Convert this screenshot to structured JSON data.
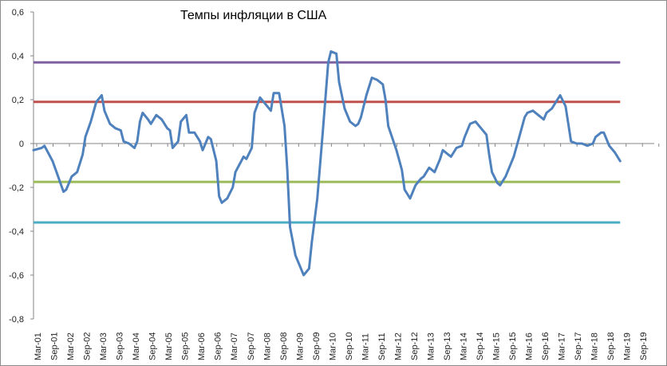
{
  "chart_data": {
    "type": "line",
    "title": "Темпы инфляции в США",
    "xlabel": "",
    "ylabel": "",
    "ylim": [
      -0.8,
      0.6
    ],
    "yticks": [
      "-0,8",
      "-0,6",
      "-0,4",
      "-0,2",
      "0",
      "0,2",
      "0,4",
      "0,6"
    ],
    "ytick_values": [
      -0.8,
      -0.6,
      -0.4,
      -0.2,
      0,
      0.2,
      0.4,
      0.6
    ],
    "xticks": [
      "Mar-01",
      "Sep-01",
      "Mar-02",
      "Sep-02",
      "Mar-03",
      "Sep-03",
      "Mar-04",
      "Sep-04",
      "Mar-05",
      "Sep-05",
      "Mar-06",
      "Sep-06",
      "Mar-07",
      "Sep-07",
      "Mar-08",
      "Sep-08",
      "Mar-09",
      "Sep-09",
      "Mar-10",
      "Sep-10",
      "Mar-11",
      "Sep-11",
      "Mar-12",
      "Sep-12",
      "Mar-13",
      "Sep-13",
      "Mar-14",
      "Sep-14",
      "Mar-15",
      "Sep-15",
      "Mar-16",
      "Sep-16",
      "Mar-17",
      "Sep-17",
      "Mar-18",
      "Sep-18",
      "Mar-19",
      "Sep-19"
    ],
    "grid": false,
    "legend": "none",
    "series": [
      {
        "color": "#4F81BD",
        "points": [
          [
            "2001-01",
            -0.03
          ],
          [
            "2001-04",
            -0.02
          ],
          [
            "2001-05",
            -0.01
          ],
          [
            "2001-08",
            -0.08
          ],
          [
            "2001-10",
            -0.15
          ],
          [
            "2001-12",
            -0.22
          ],
          [
            "2002-01",
            -0.21
          ],
          [
            "2002-03",
            -0.15
          ],
          [
            "2002-05",
            -0.13
          ],
          [
            "2002-07",
            -0.05
          ],
          [
            "2002-08",
            0.03
          ],
          [
            "2002-10",
            0.1
          ],
          [
            "2002-12",
            0.19
          ],
          [
            "2003-02",
            0.22
          ],
          [
            "2003-03",
            0.15
          ],
          [
            "2003-05",
            0.09
          ],
          [
            "2003-07",
            0.07
          ],
          [
            "2003-09",
            0.06
          ],
          [
            "2003-10",
            0.01
          ],
          [
            "2003-12",
            0.0
          ],
          [
            "2004-02",
            -0.02
          ],
          [
            "2004-03",
            0.01
          ],
          [
            "2004-04",
            0.1
          ],
          [
            "2004-05",
            0.14
          ],
          [
            "2004-07",
            0.11
          ],
          [
            "2004-08",
            0.09
          ],
          [
            "2004-10",
            0.13
          ],
          [
            "2004-12",
            0.11
          ],
          [
            "2005-02",
            0.07
          ],
          [
            "2005-03",
            0.06
          ],
          [
            "2005-04",
            -0.02
          ],
          [
            "2005-06",
            0.01
          ],
          [
            "2005-07",
            0.1
          ],
          [
            "2005-09",
            0.13
          ],
          [
            "2005-10",
            0.05
          ],
          [
            "2005-12",
            0.05
          ],
          [
            "2006-02",
            0.01
          ],
          [
            "2006-03",
            -0.03
          ],
          [
            "2006-04",
            0.0
          ],
          [
            "2006-05",
            0.03
          ],
          [
            "2006-06",
            0.02
          ],
          [
            "2006-08",
            -0.08
          ],
          [
            "2006-09",
            -0.24
          ],
          [
            "2006-10",
            -0.27
          ],
          [
            "2006-12",
            -0.25
          ],
          [
            "2007-02",
            -0.2
          ],
          [
            "2007-03",
            -0.13
          ],
          [
            "2007-06",
            -0.06
          ],
          [
            "2007-07",
            -0.07
          ],
          [
            "2007-09",
            -0.02
          ],
          [
            "2007-10",
            0.14
          ],
          [
            "2007-12",
            0.21
          ],
          [
            "2008-02",
            0.18
          ],
          [
            "2008-04",
            0.15
          ],
          [
            "2008-05",
            0.23
          ],
          [
            "2008-07",
            0.23
          ],
          [
            "2008-09",
            0.08
          ],
          [
            "2008-10",
            -0.12
          ],
          [
            "2008-11",
            -0.38
          ],
          [
            "2009-01",
            -0.51
          ],
          [
            "2009-03",
            -0.57
          ],
          [
            "2009-04",
            -0.6
          ],
          [
            "2009-06",
            -0.57
          ],
          [
            "2009-07",
            -0.45
          ],
          [
            "2009-09",
            -0.25
          ],
          [
            "2009-11",
            0.05
          ],
          [
            "2010-01",
            0.37
          ],
          [
            "2010-02",
            0.42
          ],
          [
            "2010-04",
            0.41
          ],
          [
            "2010-05",
            0.28
          ],
          [
            "2010-07",
            0.16
          ],
          [
            "2010-09",
            0.1
          ],
          [
            "2010-11",
            0.08
          ],
          [
            "2010-12",
            0.09
          ],
          [
            "2011-01",
            0.12
          ],
          [
            "2011-03",
            0.22
          ],
          [
            "2011-05",
            0.3
          ],
          [
            "2011-07",
            0.29
          ],
          [
            "2011-09",
            0.27
          ],
          [
            "2011-10",
            0.2
          ],
          [
            "2011-11",
            0.08
          ],
          [
            "2012-02",
            -0.03
          ],
          [
            "2012-04",
            -0.12
          ],
          [
            "2012-05",
            -0.21
          ],
          [
            "2012-07",
            -0.25
          ],
          [
            "2012-09",
            -0.19
          ],
          [
            "2012-11",
            -0.16
          ],
          [
            "2012-12",
            -0.15
          ],
          [
            "2013-02",
            -0.11
          ],
          [
            "2013-04",
            -0.13
          ],
          [
            "2013-06",
            -0.07
          ],
          [
            "2013-07",
            -0.03
          ],
          [
            "2013-09",
            -0.05
          ],
          [
            "2013-10",
            -0.06
          ],
          [
            "2013-12",
            -0.02
          ],
          [
            "2014-02",
            -0.01
          ],
          [
            "2014-03",
            0.03
          ],
          [
            "2014-05",
            0.09
          ],
          [
            "2014-07",
            0.1
          ],
          [
            "2014-09",
            0.07
          ],
          [
            "2014-11",
            0.04
          ],
          [
            "2014-12",
            -0.05
          ],
          [
            "2015-01",
            -0.13
          ],
          [
            "2015-03",
            -0.18
          ],
          [
            "2015-04",
            -0.19
          ],
          [
            "2015-06",
            -0.15
          ],
          [
            "2015-08",
            -0.09
          ],
          [
            "2015-09",
            -0.06
          ],
          [
            "2015-11",
            0.03
          ],
          [
            "2016-01",
            0.12
          ],
          [
            "2016-02",
            0.14
          ],
          [
            "2016-04",
            0.15
          ],
          [
            "2016-06",
            0.13
          ],
          [
            "2016-08",
            0.11
          ],
          [
            "2016-09",
            0.14
          ],
          [
            "2016-11",
            0.16
          ],
          [
            "2017-01",
            0.2
          ],
          [
            "2017-02",
            0.22
          ],
          [
            "2017-04",
            0.17
          ],
          [
            "2017-05",
            0.09
          ],
          [
            "2017-06",
            0.01
          ],
          [
            "2017-08",
            0.0
          ],
          [
            "2017-10",
            0.0
          ],
          [
            "2017-12",
            -0.01
          ],
          [
            "2018-02",
            0.0
          ],
          [
            "2018-03",
            0.03
          ],
          [
            "2018-05",
            0.05
          ],
          [
            "2018-06",
            0.05
          ],
          [
            "2018-08",
            -0.01
          ],
          [
            "2018-10",
            -0.04
          ],
          [
            "2018-12",
            -0.08
          ]
        ]
      },
      {
        "color": "#7E60A0",
        "constant": 0.37
      },
      {
        "color": "#C0504D",
        "constant": 0.19
      },
      {
        "color": "#9BBB59",
        "constant": -0.175
      },
      {
        "color": "#4BACC6",
        "constant": -0.36
      }
    ],
    "x_range": [
      "2001-01",
      "2018-12"
    ]
  }
}
